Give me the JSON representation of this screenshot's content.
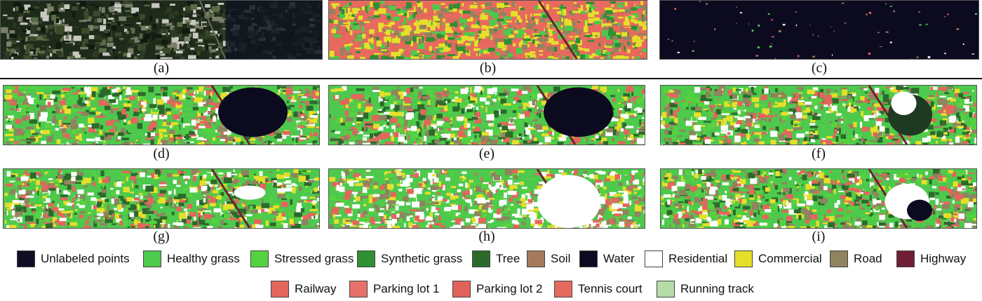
{
  "panels": [
    {
      "id": "a",
      "caption": "(a)",
      "kind": "aerial"
    },
    {
      "id": "b",
      "caption": "(b)",
      "kind": "classmap-bright"
    },
    {
      "id": "c",
      "caption": "(c)",
      "kind": "sparse"
    },
    {
      "id": "d",
      "caption": "(d)",
      "kind": "classmap-dark-water"
    },
    {
      "id": "e",
      "caption": "(e)",
      "kind": "classmap-dark-water"
    },
    {
      "id": "f",
      "caption": "(f)",
      "kind": "classmap-shadow"
    },
    {
      "id": "g",
      "caption": "(g)",
      "kind": "classmap"
    },
    {
      "id": "h",
      "caption": "(h)",
      "kind": "classmap-white"
    },
    {
      "id": "i",
      "caption": "(i)",
      "kind": "classmap-shadow-light"
    }
  ],
  "legend": [
    {
      "label": "Unlabeled points",
      "color": "#0f0c24"
    },
    {
      "label": "Healthy grass",
      "color": "#4dc94d"
    },
    {
      "label": "Stressed grass",
      "color": "#55d23f"
    },
    {
      "label": "Synthetic grass",
      "color": "#2f8f33"
    },
    {
      "label": "Tree",
      "color": "#2c6a2c"
    },
    {
      "label": "Soil",
      "color": "#a57a5c"
    },
    {
      "label": "Water",
      "color": "#0c0a1f"
    },
    {
      "label": "Residential",
      "color": "#ffffff"
    },
    {
      "label": "Commercial",
      "color": "#e6df2a"
    },
    {
      "label": "Road",
      "color": "#8f8360"
    },
    {
      "label": "Highway",
      "color": "#6e1f35"
    },
    {
      "label": "Railway",
      "color": "#e3665d"
    },
    {
      "label": "Parking lot 1",
      "color": "#e7716a"
    },
    {
      "label": "Parking lot 2",
      "color": "#e0625a"
    },
    {
      "label": "Tennis court",
      "color": "#e5695f"
    },
    {
      "label": "Running track",
      "color": "#b6dca8"
    }
  ]
}
